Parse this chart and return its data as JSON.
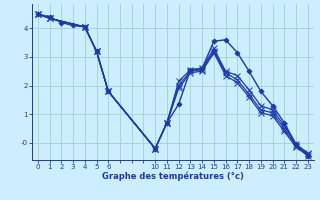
{
  "title": "Graphe des températures (°c)",
  "background_color": "#cceeff",
  "grid_color": "#aad4d4",
  "line_color": "#1a3aab",
  "xlim": [
    -0.5,
    23.5
  ],
  "ylim": [
    -0.6,
    4.85
  ],
  "xtick_labels": [
    "0",
    "1",
    "2",
    "3",
    "4",
    "5",
    "6",
    "",
    "",
    "",
    "10",
    "11",
    "12",
    "13",
    "14",
    "15",
    "16",
    "17",
    "18",
    "19",
    "20",
    "21",
    "22",
    "23"
  ],
  "xtick_positions": [
    0,
    1,
    2,
    3,
    4,
    5,
    6,
    7,
    8,
    9,
    10,
    11,
    12,
    13,
    14,
    15,
    16,
    17,
    18,
    19,
    20,
    21,
    22,
    23
  ],
  "yticks": [
    0,
    1,
    2,
    3,
    4
  ],
  "series": [
    {
      "x": [
        0,
        1,
        2,
        3,
        4,
        5,
        6,
        10,
        11,
        12,
        13,
        14,
        15,
        16,
        17,
        18,
        19,
        20,
        21,
        22,
        23
      ],
      "y": [
        4.5,
        4.4,
        4.2,
        4.1,
        4.05,
        3.2,
        1.8,
        -0.2,
        0.7,
        1.35,
        2.55,
        2.6,
        3.55,
        3.6,
        3.15,
        2.5,
        1.8,
        1.3,
        0.7,
        -0.05,
        -0.45
      ],
      "marker": "D",
      "markersize": 2.5,
      "linestyle": "-",
      "linewidth": 1.0
    },
    {
      "comment": "Line 2: cross marker, solid, 0,1,4,5,6,10,11..23",
      "x": [
        0,
        1,
        4,
        5,
        6,
        10,
        11,
        12,
        13,
        14,
        15,
        16,
        17,
        18,
        19,
        20,
        21,
        22,
        23
      ],
      "y": [
        4.5,
        4.35,
        4.05,
        3.2,
        1.8,
        -0.2,
        0.7,
        2.15,
        2.55,
        2.6,
        3.3,
        2.5,
        2.35,
        1.85,
        1.3,
        1.15,
        0.6,
        -0.05,
        -0.35
      ],
      "marker": "x",
      "markersize": 4,
      "linestyle": "-",
      "linewidth": 0.9
    },
    {
      "x": [
        0,
        1,
        4,
        5,
        6,
        10,
        11,
        12,
        13,
        14,
        15,
        16,
        17,
        18,
        19,
        20,
        21,
        22,
        23
      ],
      "y": [
        4.5,
        4.35,
        4.05,
        3.2,
        1.8,
        -0.2,
        0.7,
        2.0,
        2.5,
        2.55,
        3.2,
        2.45,
        2.2,
        1.7,
        1.15,
        1.05,
        0.5,
        -0.1,
        -0.4
      ],
      "marker": "x",
      "markersize": 4,
      "linestyle": "-",
      "linewidth": 0.9
    },
    {
      "x": [
        0,
        1,
        4,
        5,
        6,
        10,
        11,
        12,
        13,
        14,
        15,
        16,
        17,
        18,
        19,
        20,
        21,
        22,
        23
      ],
      "y": [
        4.5,
        4.35,
        4.05,
        3.2,
        1.8,
        -0.2,
        0.7,
        1.9,
        2.45,
        2.5,
        3.15,
        2.35,
        2.1,
        1.6,
        1.05,
        0.95,
        0.4,
        -0.15,
        -0.45
      ],
      "marker": "x",
      "markersize": 4,
      "linestyle": "-",
      "linewidth": 0.9
    }
  ]
}
